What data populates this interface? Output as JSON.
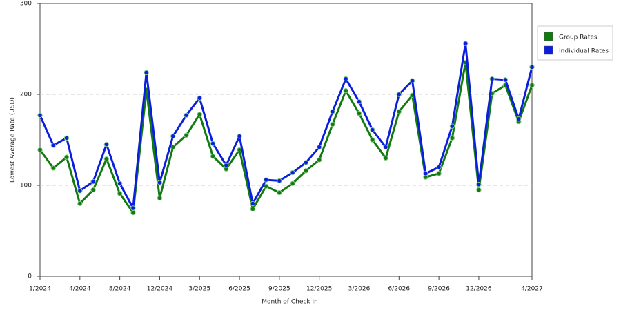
{
  "chart_data": {
    "type": "line",
    "x_label": "Month of Check In",
    "y_label": "Lowest Average Rate (USD)",
    "categories": [
      "1/2024",
      null,
      null,
      "4/2024",
      null,
      null,
      "8/2024",
      null,
      null,
      "12/2024",
      null,
      null,
      "3/2025",
      null,
      null,
      "6/2025",
      null,
      null,
      "9/2025",
      null,
      null,
      "12/2025",
      null,
      null,
      "3/2026",
      null,
      null,
      "6/2026",
      null,
      null,
      "9/2026",
      null,
      null,
      "12/2026",
      null,
      null,
      null,
      "4/2027"
    ],
    "series": [
      {
        "name": "Group Rates",
        "color": "#117a11",
        "values": [
          139,
          119,
          131,
          80,
          95,
          129,
          91,
          70,
          205,
          86,
          142,
          155,
          178,
          132,
          118,
          139,
          74,
          99,
          92,
          102,
          116,
          128,
          167,
          204,
          179,
          150,
          130,
          181,
          199,
          109,
          113,
          152,
          235,
          95,
          201,
          210,
          170,
          210
        ]
      },
      {
        "name": "Individual Rates",
        "color": "#0a1ee0",
        "values": [
          177,
          144,
          152,
          94,
          104,
          145,
          102,
          75,
          224,
          103,
          154,
          177,
          196,
          146,
          122,
          154,
          80,
          106,
          105,
          114,
          125,
          142,
          181,
          217,
          192,
          161,
          142,
          200,
          215,
          113,
          120,
          165,
          256,
          101,
          217,
          216,
          173,
          230
        ]
      }
    ],
    "ylim": [
      0,
      300
    ],
    "yticks": [
      0,
      100,
      200,
      300
    ],
    "grid": true,
    "legend": "right"
  }
}
